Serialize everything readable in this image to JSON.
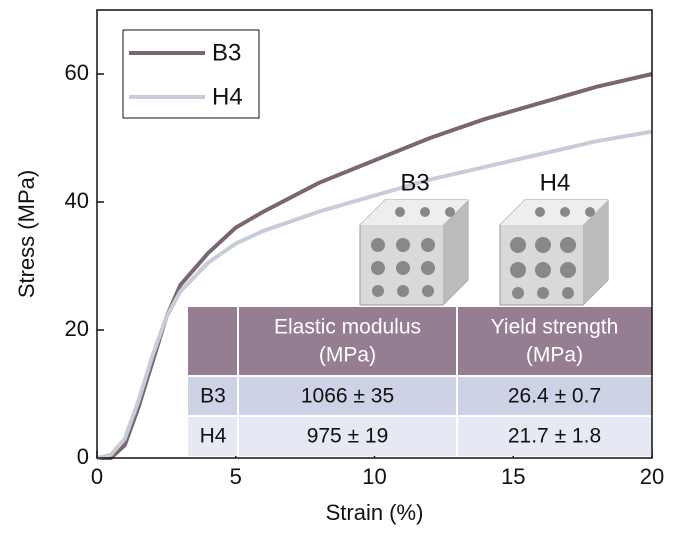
{
  "chart_data": {
    "type": "line",
    "xlabel": "Strain (%)",
    "ylabel": "Stress (MPa)",
    "x": [
      0,
      0.5,
      1,
      1.5,
      2,
      2.5,
      3,
      4,
      5,
      6,
      8,
      10,
      12,
      14,
      16,
      18,
      20
    ],
    "series": [
      {
        "name": "B3",
        "color": "#7d6570",
        "values": [
          0,
          0,
          2,
          8,
          15,
          22,
          27,
          32,
          36,
          38.5,
          43,
          46.5,
          50,
          53,
          55.5,
          58,
          60
        ]
      },
      {
        "name": "H4",
        "color": "#c6ccd8",
        "values": [
          0,
          0.5,
          3,
          9,
          16,
          22,
          26,
          30.5,
          33.5,
          35.5,
          38.5,
          41,
          43.5,
          45.5,
          47.5,
          49.5,
          51
        ]
      }
    ],
    "xlim": [
      0,
      20
    ],
    "xticks": [
      0,
      5,
      10,
      15,
      20
    ],
    "ylim": [
      0,
      70
    ],
    "yticks": [
      0,
      20,
      40,
      60
    ],
    "legend": "top-left",
    "annotations": [
      "B3",
      "H4"
    ],
    "table": {
      "header": [
        [
          "Elastic modulus",
          "(MPa)"
        ],
        [
          "Yield strength",
          "(MPa)"
        ]
      ],
      "rows": [
        [
          "B3",
          "1066 ± 35",
          "26.4 ± 0.7"
        ],
        [
          "H4",
          "975 ± 19",
          "21.7 ± 1.8"
        ]
      ]
    }
  }
}
